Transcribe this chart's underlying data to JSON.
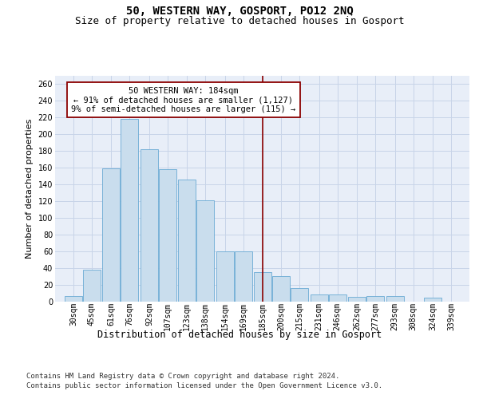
{
  "title": "50, WESTERN WAY, GOSPORT, PO12 2NQ",
  "subtitle": "Size of property relative to detached houses in Gosport",
  "xlabel": "Distribution of detached houses by size in Gosport",
  "ylabel": "Number of detached properties",
  "footer_line1": "Contains HM Land Registry data © Crown copyright and database right 2024.",
  "footer_line2": "Contains public sector information licensed under the Open Government Licence v3.0.",
  "annotation_title": "50 WESTERN WAY: 184sqm",
  "annotation_line2": "← 91% of detached houses are smaller (1,127)",
  "annotation_line3": "9% of semi-detached houses are larger (115) →",
  "bar_labels": [
    "30sqm",
    "45sqm",
    "61sqm",
    "76sqm",
    "92sqm",
    "107sqm",
    "123sqm",
    "138sqm",
    "154sqm",
    "169sqm",
    "185sqm",
    "200sqm",
    "215sqm",
    "231sqm",
    "246sqm",
    "262sqm",
    "277sqm",
    "293sqm",
    "308sqm",
    "324sqm",
    "339sqm"
  ],
  "bar_values": [
    6,
    38,
    159,
    218,
    182,
    158,
    146,
    121,
    60,
    60,
    35,
    30,
    16,
    8,
    8,
    5,
    6,
    6,
    0,
    4,
    0
  ],
  "bin_centers": [
    30,
    45,
    61,
    76,
    92,
    107,
    123,
    138,
    154,
    169,
    185,
    200,
    215,
    231,
    246,
    262,
    277,
    293,
    308,
    324,
    339
  ],
  "bin_width": 15,
  "bar_color": "#c9dded",
  "bar_edge_color": "#6aaad4",
  "vline_color": "#8b0000",
  "annotation_box_edgecolor": "#8b0000",
  "grid_color": "#c8d4e8",
  "bg_color": "#e8eef8",
  "ylim": [
    0,
    270
  ],
  "yticks": [
    0,
    20,
    40,
    60,
    80,
    100,
    120,
    140,
    160,
    180,
    200,
    220,
    240,
    260
  ],
  "title_fontsize": 10,
  "subtitle_fontsize": 9,
  "xlabel_fontsize": 8.5,
  "ylabel_fontsize": 8,
  "tick_fontsize": 7,
  "annotation_fontsize": 7.5,
  "footer_fontsize": 6.5
}
